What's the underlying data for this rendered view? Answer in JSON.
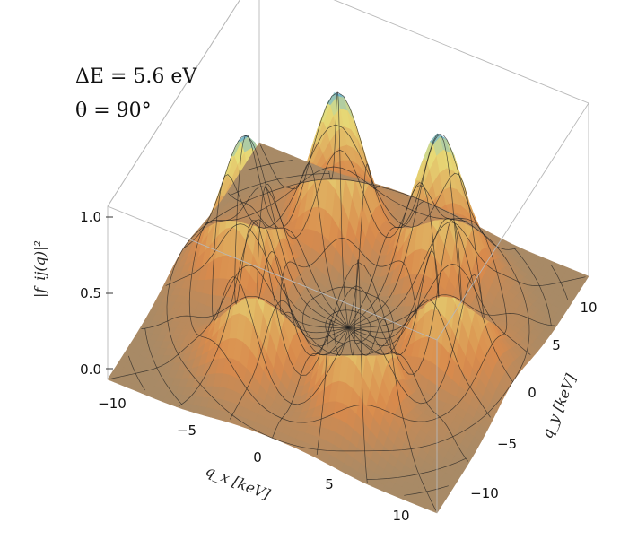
{
  "chart_data": {
    "type": "surface3d",
    "annotations": [
      "ΔE = 5.6 eV",
      "θ = 90°"
    ],
    "xlabel": "q_x [keV]",
    "ylabel": "q_y [keV]",
    "zlabel": "|f_ij(q)|²",
    "x_ticks": [
      "−10",
      "−5",
      "0",
      "5",
      "10"
    ],
    "y_ticks": [
      "−10",
      "−5",
      "0",
      "5",
      "10"
    ],
    "z_ticks": [
      "0.0",
      "0.5",
      "1.0"
    ],
    "xlim": [
      -12,
      12
    ],
    "ylim": [
      -12,
      12
    ],
    "zlim": [
      0,
      1.15
    ],
    "peaks": [
      {
        "x": -3.7,
        "y": -6.4,
        "z": 1.0
      },
      {
        "x": -7.4,
        "y": 0.0,
        "z": 1.0
      },
      {
        "x": -3.7,
        "y": 6.4,
        "z": 1.0
      },
      {
        "x": 3.7,
        "y": 6.4,
        "z": 1.0
      },
      {
        "x": 7.4,
        "y": 0.0,
        "z": 1.0
      },
      {
        "x": 3.7,
        "y": -6.4,
        "z": 1.0
      }
    ],
    "colors": {
      "floor": "#a88a66",
      "mid": "#d98a4c",
      "high": "#e8e07a",
      "peak": "#5aaee0",
      "mesh": "#222222",
      "box": "#b8b8b8"
    }
  }
}
